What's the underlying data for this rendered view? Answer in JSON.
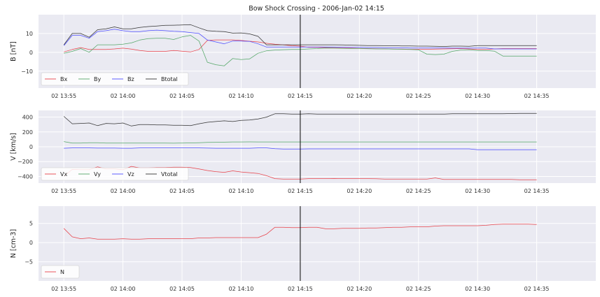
{
  "title": "Bow Shock Crossing - 2006-Jan-02 14:15",
  "chart_data": [
    {
      "type": "line",
      "ylabel": "B [nT]",
      "ylim": [
        -19,
        20
      ],
      "yticks": [
        10,
        0,
        -10
      ],
      "ytick_labels": [
        "10",
        "0",
        "−10"
      ],
      "xlim": [
        -3,
        63
      ],
      "xticks": [
        0,
        7,
        14,
        21,
        28,
        35,
        42,
        49,
        56
      ],
      "xtick_labels": [
        "02 13:55",
        "02 14:00",
        "02 14:05",
        "02 14:10",
        "02 14:15",
        "02 14:20",
        "02 14:25",
        "02 14:30",
        "02 14:35"
      ],
      "vline": 28,
      "legend": "lower-left",
      "grid": true,
      "x": [
        0,
        1,
        2,
        3,
        4,
        5,
        6,
        7,
        8,
        9,
        10,
        11,
        12,
        13,
        14,
        15,
        16,
        17,
        18,
        19,
        20,
        21,
        22,
        23,
        24,
        25,
        26,
        27,
        28,
        29,
        30,
        31,
        32,
        33,
        34,
        35,
        36,
        37,
        38,
        39,
        40,
        41,
        42,
        43,
        44,
        45,
        46,
        47,
        48,
        49,
        50,
        51,
        52,
        53,
        54,
        55,
        56
      ],
      "series": [
        {
          "name": "Bx",
          "color": "#e8424a",
          "values": [
            0.2,
            1.5,
            2.5,
            1.5,
            1.5,
            1.5,
            1.8,
            2.2,
            1.7,
            1.0,
            0.5,
            0.5,
            0.5,
            1.0,
            0.6,
            0.2,
            1.5,
            6.3,
            6.6,
            6.6,
            6.6,
            6.3,
            5.9,
            5.5,
            4.8,
            4.3,
            3.9,
            3.5,
            3.3,
            2.7,
            2.6,
            2.5,
            2.4,
            2.3,
            2.2,
            2.1,
            2.0,
            1.9,
            1.8,
            1.7,
            1.7,
            1.6,
            1.6,
            1.6,
            1.7,
            1.8,
            1.9,
            2.0,
            1.8,
            1.5,
            1.5,
            1.8,
            2.0,
            2.0,
            2.0,
            2.0,
            2.0
          ]
        },
        {
          "name": "By",
          "color": "#55a868",
          "values": [
            -0.5,
            0.5,
            2.0,
            0.0,
            4.0,
            4.0,
            4.0,
            4.3,
            5.0,
            6.5,
            7.3,
            7.5,
            7.5,
            6.8,
            8.2,
            9.0,
            6.0,
            -5.3,
            -6.6,
            -7.2,
            -3.3,
            -3.9,
            -3.5,
            -0.5,
            0.8,
            1.2,
            1.4,
            1.5,
            1.5,
            1.8,
            2.0,
            2.3,
            2.2,
            2.1,
            2.0,
            2.0,
            1.9,
            1.8,
            1.8,
            1.7,
            1.6,
            1.5,
            1.3,
            -1.0,
            -1.2,
            -1.0,
            0.5,
            1.2,
            1.4,
            1.0,
            1.0,
            0.6,
            -2.0,
            -2.0,
            -2.0,
            -2.0,
            -2.0
          ]
        },
        {
          "name": "Bz",
          "color": "#4c4cff",
          "values": [
            3.5,
            9.0,
            9.0,
            7.5,
            11.0,
            11.5,
            12.3,
            11.5,
            11.0,
            11.0,
            11.5,
            11.8,
            11.5,
            11.2,
            11.0,
            10.5,
            10.0,
            6.5,
            5.5,
            4.5,
            6.0,
            6.0,
            5.8,
            4.5,
            2.8,
            2.8,
            2.8,
            2.8,
            2.8,
            2.8,
            2.8,
            2.8,
            2.8,
            2.7,
            2.6,
            2.6,
            2.5,
            2.5,
            2.4,
            2.4,
            2.4,
            2.3,
            2.3,
            2.3,
            2.3,
            2.3,
            2.2,
            2.2,
            2.2,
            2.3,
            2.3,
            1.8,
            1.8,
            1.8,
            1.8,
            1.8,
            1.8
          ]
        },
        {
          "name": "Btotal",
          "color": "#333333",
          "values": [
            4.0,
            10.0,
            10.0,
            8.0,
            12.0,
            12.5,
            13.5,
            12.5,
            12.5,
            13.2,
            13.7,
            14.0,
            14.3,
            14.4,
            14.5,
            14.7,
            13.0,
            11.5,
            11.2,
            11.0,
            10.2,
            10.3,
            9.8,
            8.5,
            4.0,
            4.0,
            4.0,
            4.0,
            4.0,
            4.0,
            4.0,
            4.0,
            4.0,
            3.9,
            3.8,
            3.7,
            3.6,
            3.6,
            3.5,
            3.5,
            3.4,
            3.4,
            3.3,
            3.3,
            3.2,
            3.1,
            3.3,
            3.3,
            3.2,
            3.6,
            3.6,
            3.6,
            3.6,
            3.6,
            3.6,
            3.6,
            3.6
          ]
        }
      ]
    },
    {
      "type": "line",
      "ylabel": "V [km/s]",
      "ylim": [
        -490,
        490
      ],
      "yticks": [
        400,
        200,
        0,
        -200,
        -400
      ],
      "ytick_labels": [
        "400",
        "200",
        "0",
        "−200",
        "−400"
      ],
      "xlim": [
        -3,
        63
      ],
      "xticks": [
        0,
        7,
        14,
        21,
        28,
        35,
        42,
        49,
        56
      ],
      "xtick_labels": [
        "02 13:55",
        "02 14:00",
        "02 14:05",
        "02 14:10",
        "02 14:15",
        "02 14:20",
        "02 14:25",
        "02 14:30",
        "02 14:35"
      ],
      "vline": 28,
      "legend": "lower-left",
      "grid": true,
      "x": [
        0,
        1,
        2,
        3,
        4,
        5,
        6,
        7,
        8,
        9,
        10,
        11,
        12,
        13,
        14,
        15,
        16,
        17,
        18,
        19,
        20,
        21,
        22,
        23,
        24,
        25,
        26,
        27,
        28,
        29,
        30,
        31,
        32,
        33,
        34,
        35,
        36,
        37,
        38,
        39,
        40,
        41,
        42,
        43,
        44,
        45,
        46,
        47,
        48,
        49,
        50,
        51,
        52,
        53,
        54,
        55,
        56
      ],
      "series": [
        {
          "name": "Vx",
          "color": "#e8424a",
          "values": [
            -400,
            -305,
            -310,
            -310,
            -270,
            -300,
            -300,
            -310,
            -265,
            -285,
            -285,
            -280,
            -280,
            -275,
            -275,
            -280,
            -300,
            -320,
            -335,
            -345,
            -325,
            -340,
            -350,
            -360,
            -390,
            -430,
            -435,
            -435,
            -435,
            -430,
            -430,
            -430,
            -428,
            -430,
            -430,
            -430,
            -430,
            -432,
            -435,
            -435,
            -435,
            -435,
            -435,
            -435,
            -420,
            -440,
            -440,
            -440,
            -440,
            -440,
            -440,
            -440,
            -440,
            -440,
            -445,
            -445,
            -445
          ]
        },
        {
          "name": "Vy",
          "color": "#55a868",
          "values": [
            70,
            50,
            50,
            55,
            55,
            50,
            50,
            50,
            50,
            50,
            50,
            50,
            50,
            48,
            50,
            52,
            55,
            58,
            60,
            62,
            65,
            65,
            66,
            65,
            65,
            65,
            65,
            65,
            65,
            65,
            65,
            65,
            65,
            65,
            65,
            65,
            65,
            65,
            65,
            65,
            65,
            65,
            65,
            65,
            65,
            65,
            65,
            65,
            65,
            65,
            65,
            65,
            65,
            65,
            65,
            65,
            65
          ]
        },
        {
          "name": "Vz",
          "color": "#4c4cff",
          "values": [
            -20,
            -15,
            -15,
            -15,
            -18,
            -18,
            -18,
            -20,
            -20,
            -15,
            -15,
            -15,
            -15,
            -15,
            -15,
            -15,
            -15,
            -18,
            -20,
            -20,
            -20,
            -20,
            -20,
            -15,
            -15,
            -25,
            -30,
            -30,
            -30,
            -28,
            -28,
            -28,
            -28,
            -28,
            -28,
            -28,
            -28,
            -28,
            -28,
            -28,
            -28,
            -28,
            -28,
            -28,
            -28,
            -28,
            -28,
            -28,
            -28,
            -40,
            -40,
            -40,
            -40,
            -40,
            -40,
            -40,
            -40
          ]
        },
        {
          "name": "Vtotal",
          "color": "#333333",
          "values": [
            410,
            310,
            315,
            320,
            285,
            315,
            310,
            320,
            280,
            300,
            300,
            295,
            295,
            290,
            290,
            285,
            310,
            330,
            340,
            350,
            340,
            355,
            360,
            375,
            400,
            445,
            445,
            440,
            440,
            445,
            440,
            440,
            440,
            440,
            440,
            440,
            440,
            440,
            440,
            440,
            440,
            440,
            440,
            440,
            440,
            440,
            445,
            445,
            445,
            445,
            445,
            445,
            445,
            448,
            450,
            450,
            450
          ]
        }
      ]
    },
    {
      "type": "line",
      "ylabel": "N [cm-3]",
      "ylim": [
        -10,
        9.5
      ],
      "yticks": [
        5,
        0,
        -5
      ],
      "ytick_labels": [
        "5",
        "0",
        "−5"
      ],
      "xlim": [
        -3,
        63
      ],
      "xticks": [
        0,
        7,
        14,
        21,
        28,
        35,
        42,
        49,
        56
      ],
      "xtick_labels": [
        "02 13:55",
        "02 14:00",
        "02 14:05",
        "02 14:10",
        "02 14:15",
        "02 14:20",
        "02 14:25",
        "02 14:30",
        "02 14:35"
      ],
      "vline": 28,
      "legend": "lower-left",
      "grid": true,
      "x": [
        0,
        1,
        2,
        3,
        4,
        5,
        6,
        7,
        8,
        9,
        10,
        11,
        12,
        13,
        14,
        15,
        16,
        17,
        18,
        19,
        20,
        21,
        22,
        23,
        24,
        25,
        26,
        27,
        28,
        29,
        30,
        31,
        32,
        33,
        34,
        35,
        36,
        37,
        38,
        39,
        40,
        41,
        42,
        43,
        44,
        45,
        46,
        47,
        48,
        49,
        50,
        51,
        52,
        53,
        54,
        55,
        56
      ],
      "series": [
        {
          "name": "N",
          "color": "#e8424a",
          "values": [
            3.7,
            1.5,
            1.0,
            1.2,
            0.9,
            0.9,
            0.9,
            1.0,
            0.9,
            0.9,
            1.0,
            1.0,
            1.0,
            1.0,
            1.0,
            1.0,
            1.2,
            1.2,
            1.3,
            1.3,
            1.3,
            1.3,
            1.3,
            1.3,
            2.2,
            4.0,
            4.0,
            3.9,
            3.9,
            4.0,
            4.0,
            3.6,
            3.6,
            3.7,
            3.7,
            3.7,
            3.8,
            3.8,
            3.9,
            4.0,
            4.0,
            4.1,
            4.1,
            4.1,
            4.3,
            4.4,
            4.4,
            4.4,
            4.4,
            4.4,
            4.5,
            4.7,
            4.8,
            4.8,
            4.8,
            4.8,
            4.7
          ]
        }
      ]
    }
  ]
}
